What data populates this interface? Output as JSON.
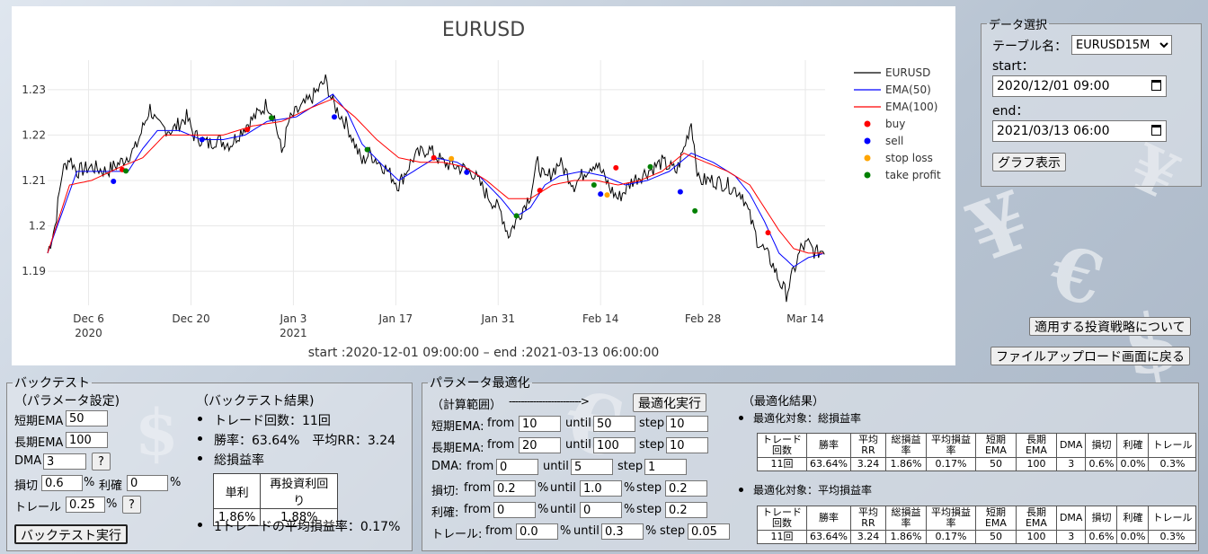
{
  "chart": {
    "title": "EURUSD",
    "subtitle": "start :2020-12-01 09:00:00  –   end :2021-03-13 06:00:00",
    "legend": [
      {
        "label": "EURUSD",
        "color": "#000000",
        "kind": "line"
      },
      {
        "label": "EMA(50)",
        "color": "#0000ff",
        "kind": "line"
      },
      {
        "label": "EMA(100)",
        "color": "#ff0000",
        "kind": "line"
      },
      {
        "label": "buy",
        "color": "#ff0000",
        "kind": "dot"
      },
      {
        "label": "sell",
        "color": "#0000ff",
        "kind": "dot"
      },
      {
        "label": "stop loss",
        "color": "#ffa500",
        "kind": "dot"
      },
      {
        "label": "take profit",
        "color": "#008000",
        "kind": "dot"
      }
    ]
  },
  "chart_data": {
    "type": "line",
    "title": "EURUSD",
    "xlabel": "",
    "ylabel": "",
    "x_ticks": [
      {
        "label": "Dec 6",
        "sub": "2020",
        "day": 5.6
      },
      {
        "label": "Dec 20",
        "sub": "",
        "day": 19.6
      },
      {
        "label": "Jan 3",
        "sub": "2021",
        "day": 33.6
      },
      {
        "label": "Jan 17",
        "sub": "",
        "day": 47.6
      },
      {
        "label": "Jan 31",
        "sub": "",
        "day": 61.6
      },
      {
        "label": "Feb 14",
        "sub": "",
        "day": 75.6
      },
      {
        "label": "Feb 28",
        "sub": "",
        "day": 89.6
      },
      {
        "label": "Mar 14",
        "sub": "",
        "day": 103.6
      }
    ],
    "xlim_days": [
      0,
      106.3
    ],
    "ylim": [
      1.1825,
      1.2365
    ],
    "y_ticks": [
      1.19,
      1.2,
      1.21,
      1.22,
      1.23
    ],
    "y_tick_labels": [
      "1.19",
      "1.2",
      "1.21",
      "1.22",
      "1.23"
    ],
    "price_keypoints": [
      [
        0,
        1.194
      ],
      [
        1,
        1.2
      ],
      [
        2,
        1.212
      ],
      [
        3,
        1.215
      ],
      [
        4,
        1.212
      ],
      [
        6,
        1.213
      ],
      [
        8,
        1.212
      ],
      [
        10,
        1.214
      ],
      [
        12,
        1.217
      ],
      [
        14,
        1.226
      ],
      [
        15,
        1.222
      ],
      [
        17,
        1.221
      ],
      [
        19,
        1.224
      ],
      [
        20,
        1.22
      ],
      [
        22,
        1.218
      ],
      [
        23,
        1.219
      ],
      [
        25,
        1.218
      ],
      [
        27,
        1.222
      ],
      [
        29,
        1.225
      ],
      [
        30,
        1.227
      ],
      [
        31,
        1.224
      ],
      [
        32,
        1.216
      ],
      [
        33,
        1.223
      ],
      [
        34,
        1.225
      ],
      [
        36,
        1.228
      ],
      [
        38,
        1.232
      ],
      [
        39,
        1.227
      ],
      [
        41,
        1.222
      ],
      [
        43,
        1.214
      ],
      [
        44,
        1.216
      ],
      [
        46,
        1.213
      ],
      [
        48,
        1.209
      ],
      [
        50,
        1.215
      ],
      [
        52,
        1.217
      ],
      [
        54,
        1.214
      ],
      [
        56,
        1.213
      ],
      [
        58,
        1.212
      ],
      [
        60,
        1.207
      ],
      [
        62,
        1.203
      ],
      [
        63,
        1.198
      ],
      [
        64,
        1.201
      ],
      [
        66,
        1.207
      ],
      [
        67,
        1.214
      ],
      [
        68,
        1.21
      ],
      [
        70,
        1.214
      ],
      [
        72,
        1.209
      ],
      [
        74,
        1.213
      ],
      [
        75,
        1.214
      ],
      [
        77,
        1.208
      ],
      [
        78,
        1.206
      ],
      [
        80,
        1.21
      ],
      [
        82,
        1.212
      ],
      [
        84,
        1.214
      ],
      [
        86,
        1.212
      ],
      [
        87,
        1.217
      ],
      [
        88,
        1.223
      ],
      [
        89,
        1.21
      ],
      [
        91,
        1.21
      ],
      [
        93,
        1.209
      ],
      [
        95,
        1.207
      ],
      [
        96,
        1.202
      ],
      [
        97,
        1.197
      ],
      [
        99,
        1.192
      ],
      [
        100,
        1.188
      ],
      [
        101,
        1.185
      ],
      [
        102,
        1.19
      ],
      [
        103,
        1.195
      ],
      [
        104,
        1.196
      ],
      [
        105,
        1.194
      ],
      [
        106.3,
        1.195
      ]
    ],
    "ema50_keypoints": [
      [
        0,
        1.194
      ],
      [
        2,
        1.203
      ],
      [
        4,
        1.212
      ],
      [
        8,
        1.212
      ],
      [
        11,
        1.212
      ],
      [
        13,
        1.217
      ],
      [
        15,
        1.221
      ],
      [
        18,
        1.221
      ],
      [
        21,
        1.219
      ],
      [
        24,
        1.219
      ],
      [
        27,
        1.22
      ],
      [
        30,
        1.223
      ],
      [
        34,
        1.224
      ],
      [
        37,
        1.227
      ],
      [
        39,
        1.229
      ],
      [
        41,
        1.225
      ],
      [
        43,
        1.218
      ],
      [
        46,
        1.213
      ],
      [
        48,
        1.21
      ],
      [
        50,
        1.212
      ],
      [
        53,
        1.215
      ],
      [
        56,
        1.214
      ],
      [
        59,
        1.211
      ],
      [
        62,
        1.206
      ],
      [
        64,
        1.202
      ],
      [
        66,
        1.204
      ],
      [
        68,
        1.209
      ],
      [
        70,
        1.211
      ],
      [
        73,
        1.212
      ],
      [
        76,
        1.211
      ],
      [
        79,
        1.209
      ],
      [
        82,
        1.21
      ],
      [
        85,
        1.212
      ],
      [
        88,
        1.216
      ],
      [
        91,
        1.214
      ],
      [
        94,
        1.211
      ],
      [
        96,
        1.207
      ],
      [
        98,
        1.201
      ],
      [
        100,
        1.194
      ],
      [
        102,
        1.191
      ],
      [
        104,
        1.193
      ],
      [
        106.3,
        1.194
      ]
    ],
    "ema100_keypoints": [
      [
        0,
        1.194
      ],
      [
        3,
        1.209
      ],
      [
        6,
        1.21
      ],
      [
        10,
        1.213
      ],
      [
        13,
        1.215
      ],
      [
        16,
        1.22
      ],
      [
        20,
        1.22
      ],
      [
        24,
        1.22
      ],
      [
        28,
        1.222
      ],
      [
        32,
        1.223
      ],
      [
        36,
        1.226
      ],
      [
        39,
        1.228
      ],
      [
        42,
        1.224
      ],
      [
        45,
        1.219
      ],
      [
        48,
        1.215
      ],
      [
        51,
        1.214
      ],
      [
        54,
        1.214
      ],
      [
        57,
        1.213
      ],
      [
        60,
        1.21
      ],
      [
        63,
        1.206
      ],
      [
        66,
        1.206
      ],
      [
        69,
        1.209
      ],
      [
        72,
        1.21
      ],
      [
        75,
        1.21
      ],
      [
        78,
        1.209
      ],
      [
        81,
        1.21
      ],
      [
        84,
        1.212
      ],
      [
        87,
        1.216
      ],
      [
        90,
        1.214
      ],
      [
        93,
        1.212
      ],
      [
        96,
        1.209
      ],
      [
        98,
        1.204
      ],
      [
        100,
        1.199
      ],
      [
        102,
        1.195
      ],
      [
        104,
        1.194
      ],
      [
        106.3,
        1.194
      ]
    ],
    "trade_points": [
      {
        "type": "buy",
        "day": 10.2,
        "y": 1.2124
      },
      {
        "type": "sell",
        "day": 9.0,
        "y": 1.2098
      },
      {
        "type": "take profit",
        "day": 10.7,
        "y": 1.2121
      },
      {
        "type": "sell",
        "day": 21.1,
        "y": 1.219
      },
      {
        "type": "buy",
        "day": 27.3,
        "y": 1.2212
      },
      {
        "type": "take profit",
        "day": 30.6,
        "y": 1.2238
      },
      {
        "type": "sell",
        "day": 39.2,
        "y": 1.224
      },
      {
        "type": "take profit",
        "day": 43.7,
        "y": 1.2168
      },
      {
        "type": "buy",
        "day": 52.8,
        "y": 1.215
      },
      {
        "type": "stop loss",
        "day": 55.2,
        "y": 1.2148
      },
      {
        "type": "sell",
        "day": 57.3,
        "y": 1.2118
      },
      {
        "type": "take profit",
        "day": 64.1,
        "y": 1.2022
      },
      {
        "type": "buy",
        "day": 67.3,
        "y": 1.2078
      },
      {
        "type": "take profit",
        "day": 74.7,
        "y": 1.209
      },
      {
        "type": "sell",
        "day": 75.6,
        "y": 1.207
      },
      {
        "type": "stop loss",
        "day": 76.5,
        "y": 1.2068
      },
      {
        "type": "buy",
        "day": 77.7,
        "y": 1.2128
      },
      {
        "type": "take profit",
        "day": 82.4,
        "y": 1.213
      },
      {
        "type": "sell",
        "day": 86.5,
        "y": 1.2075
      },
      {
        "type": "take profit",
        "day": 88.5,
        "y": 1.2033
      },
      {
        "type": "buy",
        "day": 98.5,
        "y": 1.1985
      }
    ],
    "series": [
      {
        "name": "EURUSD"
      },
      {
        "name": "EMA(50)"
      },
      {
        "name": "EMA(100)"
      }
    ],
    "legend_position": "right"
  },
  "data_select": {
    "legend": "データ選択",
    "table_label": "テーブル名：",
    "table_value": "EURUSD15M",
    "start_label": "start：",
    "start_value": "2020/12/01 09:00",
    "end_label": "end：",
    "end_value": "2021/03/13 06:00",
    "show_button": "グラフ表示"
  },
  "nav": {
    "strategy_button": "適用する投資戦略について",
    "upload_button": "ファイルアップロード画面に戻る"
  },
  "backtest": {
    "legend": "バックテスト",
    "params_heading": "（パラメータ設定)",
    "short_ema_label": "短期EMA",
    "short_ema_value": "50",
    "long_ema_label": "長期EMA",
    "long_ema_value": "100",
    "dma_label": "DMA",
    "dma_value": "3",
    "help": "?",
    "sl_label": "損切",
    "sl_value": "0.6",
    "pct": "%",
    "tp_label": "利確",
    "tp_value": "0",
    "trail_label": "トレール",
    "trail_value": "0.25",
    "run_button": "バックテスト実行",
    "result_heading": "（バックテスト結果)",
    "trades": "トレード回数：11回",
    "winrate": "勝率：63.64%　平均RR：3.24",
    "total_label": "総損益率",
    "profit_table_headers": [
      "単利",
      "再投資利回り"
    ],
    "profit_table_values": [
      "1.86%",
      "1.88%"
    ],
    "avg_per_trade": "1トレードの平均損益率：0.17%"
  },
  "optimize": {
    "legend": "パラメータ最適化",
    "range_heading": "（計算範囲）",
    "arrow": "------------------------>",
    "run_button": "最適化実行",
    "from": "from",
    "until": "until",
    "step": "step",
    "rows": [
      {
        "label": "短期EMA:",
        "from": "10",
        "until": "50",
        "step": "10"
      },
      {
        "label": "長期EMA:",
        "from": "20",
        "until": "100",
        "step": "10"
      },
      {
        "label": "DMA:",
        "from": "0",
        "until": "5",
        "step": "1"
      },
      {
        "label": "損切:",
        "from": "0.2",
        "until": "1.0",
        "step": "0.2"
      },
      {
        "label": "利確:",
        "from": "0",
        "until": "0",
        "step": "0.2"
      },
      {
        "label": "トレール:",
        "from": "0.0",
        "until": "0.3",
        "step": "0.05"
      }
    ],
    "result_heading": "（最適化結果）",
    "target1": "最適化対象：総損益率",
    "target2": "最適化対象：平均損益率",
    "table_headers": [
      "トレード\n回数",
      "勝率",
      "平均\nRR",
      "総損益\n率",
      "平均損益\n率",
      "短期\nEMA",
      "長期\nEMA",
      "DMA",
      "損切",
      "利確",
      "トレール"
    ],
    "table1_row": [
      "11回",
      "63.64%",
      "3.24",
      "1.86%",
      "0.17%",
      "50",
      "100",
      "3",
      "0.6%",
      "0.0%",
      "0.3%"
    ],
    "table2_row": [
      "11回",
      "63.64%",
      "3.24",
      "1.86%",
      "0.17%",
      "50",
      "100",
      "3",
      "0.6%",
      "0.0%",
      "0.3%"
    ]
  }
}
